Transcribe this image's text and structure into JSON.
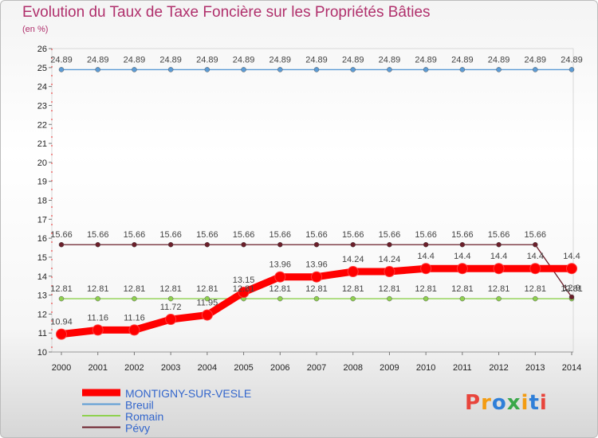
{
  "chart_data": {
    "type": "line",
    "title": "Evolution du Taux de Taxe Foncière sur les Propriétés Bâties",
    "ylabel": "(en %)",
    "xlabel": "",
    "ylim": [
      10,
      26
    ],
    "yticks": [
      "10",
      "11",
      "12",
      "13",
      "14",
      "15",
      "16",
      "17",
      "18",
      "19",
      "20",
      "21",
      "22",
      "23",
      "24",
      "25",
      "26"
    ],
    "x": [
      "2000",
      "2001",
      "2002",
      "2003",
      "2004",
      "2005",
      "2006",
      "2007",
      "2008",
      "2009",
      "2010",
      "2011",
      "2012",
      "2013",
      "2014"
    ],
    "series": [
      {
        "name": "MONTIGNY-SUR-VESLE",
        "color": "#ff0000",
        "values": [
          10.94,
          11.16,
          11.16,
          11.72,
          11.95,
          13.15,
          13.96,
          13.96,
          14.24,
          14.24,
          14.4,
          14.4,
          14.4,
          14.4,
          14.4
        ],
        "labels": [
          "10.94",
          "11.16",
          "11.16",
          "11.72",
          "11.95",
          "13.15",
          "13.96",
          "13.96",
          "14.24",
          "14.24",
          "14.4",
          "14.4",
          "14.4",
          "14.4",
          "14.4"
        ]
      },
      {
        "name": "Breuil",
        "color": "#5b9bd5",
        "values": [
          24.89,
          24.89,
          24.89,
          24.89,
          24.89,
          24.89,
          24.89,
          24.89,
          24.89,
          24.89,
          24.89,
          24.89,
          24.89,
          24.89,
          24.89
        ],
        "labels": [
          "24.89",
          "24.89",
          "24.89",
          "24.89",
          "24.89",
          "24.89",
          "24.89",
          "24.89",
          "24.89",
          "24.89",
          "24.89",
          "24.89",
          "24.89",
          "24.89",
          "24.89"
        ]
      },
      {
        "name": "Romain",
        "color": "#8fd14f",
        "values": [
          12.81,
          12.81,
          12.81,
          12.81,
          12.81,
          12.81,
          12.81,
          12.81,
          12.81,
          12.81,
          12.81,
          12.81,
          12.81,
          12.81,
          12.81
        ],
        "labels": [
          "12.81",
          "12.81",
          "12.81",
          "12.81",
          "12.81",
          "12.81",
          "12.81",
          "12.81",
          "12.81",
          "12.81",
          "12.81",
          "12.81",
          "12.81",
          "12.81",
          "12.81"
        ]
      },
      {
        "name": "Pévy",
        "color": "#6b1f2a",
        "values": [
          15.66,
          15.66,
          15.66,
          15.66,
          15.66,
          15.66,
          15.66,
          15.66,
          15.66,
          15.66,
          15.66,
          15.66,
          15.66,
          15.66,
          12.9
        ],
        "labels": [
          "15.66",
          "15.66",
          "15.66",
          "15.66",
          "15.66",
          "15.66",
          "15.66",
          "15.66",
          "15.66",
          "15.66",
          "15.66",
          "15.66",
          "15.66",
          "15.66",
          "12.9"
        ]
      }
    ]
  },
  "logo": {
    "text": "Proxiti",
    "colors": [
      "#e8453c",
      "#f39c12",
      "#2f7fd8",
      "#3aa84a",
      "#f39c12",
      "#2f7fd8",
      "#e8453c"
    ]
  }
}
